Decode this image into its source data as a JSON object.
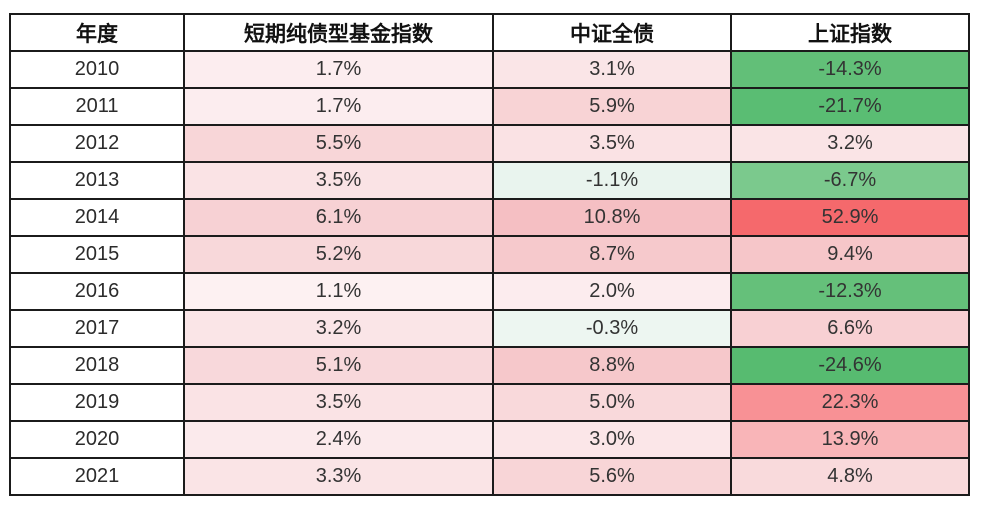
{
  "table": {
    "headers": [
      "年度",
      "短期纯债型基金指数",
      "中证全债",
      "上证指数"
    ],
    "rows": [
      {
        "year": "2010",
        "cells": [
          {
            "v": "1.7%",
            "bg": "#fcedef"
          },
          {
            "v": "3.1%",
            "bg": "#fae5e7"
          },
          {
            "v": "-14.3%",
            "bg": "#62bf78"
          }
        ]
      },
      {
        "year": "2011",
        "cells": [
          {
            "v": "1.7%",
            "bg": "#fcedef"
          },
          {
            "v": "5.9%",
            "bg": "#f8d3d5"
          },
          {
            "v": "-21.7%",
            "bg": "#5abd73"
          }
        ]
      },
      {
        "year": "2012",
        "cells": [
          {
            "v": "5.5%",
            "bg": "#f8d6d8"
          },
          {
            "v": "3.5%",
            "bg": "#fae2e4"
          },
          {
            "v": "3.2%",
            "bg": "#fae4e6"
          }
        ]
      },
      {
        "year": "2013",
        "cells": [
          {
            "v": "3.5%",
            "bg": "#fae3e5"
          },
          {
            "v": "-1.1%",
            "bg": "#e9f4ee"
          },
          {
            "v": "-6.7%",
            "bg": "#7bc98d"
          }
        ]
      },
      {
        "year": "2014",
        "cells": [
          {
            "v": "6.1%",
            "bg": "#f7d1d4"
          },
          {
            "v": "10.8%",
            "bg": "#f5bfc3"
          },
          {
            "v": "52.9%",
            "bg": "#f5696c"
          }
        ]
      },
      {
        "year": "2015",
        "cells": [
          {
            "v": "5.2%",
            "bg": "#f8d8da"
          },
          {
            "v": "8.7%",
            "bg": "#f6c9cc"
          },
          {
            "v": "9.4%",
            "bg": "#f6c6c9"
          }
        ]
      },
      {
        "year": "2016",
        "cells": [
          {
            "v": "1.1%",
            "bg": "#fdf1f2"
          },
          {
            "v": "2.0%",
            "bg": "#fcecee"
          },
          {
            "v": "-12.3%",
            "bg": "#65c07a"
          }
        ]
      },
      {
        "year": "2017",
        "cells": [
          {
            "v": "3.2%",
            "bg": "#fae5e7"
          },
          {
            "v": "-0.3%",
            "bg": "#edf6f1"
          },
          {
            "v": "6.6%",
            "bg": "#f8d0d3"
          }
        ]
      },
      {
        "year": "2018",
        "cells": [
          {
            "v": "5.1%",
            "bg": "#f8d8db"
          },
          {
            "v": "8.8%",
            "bg": "#f6c8cb"
          },
          {
            "v": "-24.6%",
            "bg": "#57bb70"
          }
        ]
      },
      {
        "year": "2019",
        "cells": [
          {
            "v": "3.5%",
            "bg": "#fae3e5"
          },
          {
            "v": "5.0%",
            "bg": "#f9d9db"
          },
          {
            "v": "22.3%",
            "bg": "#f89195"
          }
        ]
      },
      {
        "year": "2020",
        "cells": [
          {
            "v": "2.4%",
            "bg": "#fbeaec"
          },
          {
            "v": "3.0%",
            "bg": "#fbe6e8"
          },
          {
            "v": "13.9%",
            "bg": "#f9b5b8"
          }
        ]
      },
      {
        "year": "2021",
        "cells": [
          {
            "v": "3.3%",
            "bg": "#fae4e6"
          },
          {
            "v": "5.6%",
            "bg": "#f8d5d7"
          },
          {
            "v": "4.8%",
            "bg": "#f9dadc"
          }
        ]
      }
    ]
  },
  "colors": {
    "border": "#1b1b1b",
    "header_bg": "#ffffff",
    "positive_strong": "#f5696c",
    "positive_mid": "#f89195",
    "positive_light": "#fcedef",
    "negative_strong": "#57bb70",
    "negative_light": "#e9f4ee",
    "text": "#333333"
  },
  "chart_data": {
    "type": "table",
    "title": "",
    "categories": [
      "2010",
      "2011",
      "2012",
      "2013",
      "2014",
      "2015",
      "2016",
      "2017",
      "2018",
      "2019",
      "2020",
      "2021"
    ],
    "series": [
      {
        "name": "短期纯债型基金指数",
        "values": [
          1.7,
          1.7,
          5.5,
          3.5,
          6.1,
          5.2,
          1.1,
          3.2,
          5.1,
          3.5,
          2.4,
          3.3
        ]
      },
      {
        "name": "中证全债",
        "values": [
          3.1,
          5.9,
          3.5,
          -1.1,
          10.8,
          8.7,
          2.0,
          -0.3,
          8.8,
          5.0,
          3.0,
          5.6
        ]
      },
      {
        "name": "上证指数",
        "values": [
          -14.3,
          -21.7,
          3.2,
          -6.7,
          52.9,
          9.4,
          -12.3,
          6.6,
          -24.6,
          22.3,
          13.9,
          4.8
        ]
      }
    ],
    "unit": "%",
    "xlabel": "年度",
    "ylabel": "",
    "notes": "conditional formatting: red shades = positive returns, green shades = negative returns"
  }
}
